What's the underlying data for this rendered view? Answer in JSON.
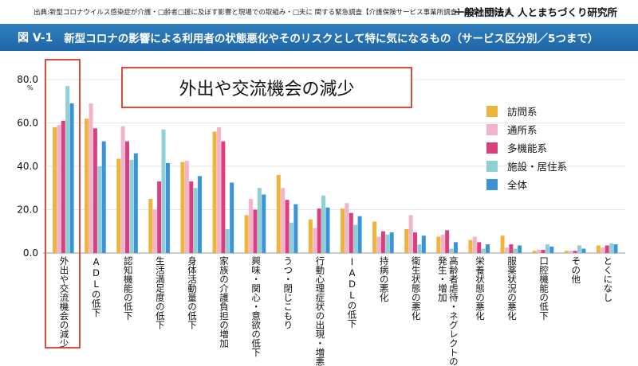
{
  "header": {
    "source": "出典:新型コロナウイルス感染症が介護・□齢者□援に及ぼす影響と現場での取組み・□夫に 関する緊急調査【介護保険サービス事業所調査】調査結果報告書",
    "org": "一般社団法人 人とまちづくり研究所",
    "fig_no": "図 V-1",
    "title": "新型コロナの影響による利用者の状態悪化やそのリスクとして特に気になるもの（サービス区分別／5つまで）"
  },
  "callout": {
    "text": "外出や交流機会の減少"
  },
  "chart_data": {
    "type": "bar",
    "title": "新型コロナの影響による利用者の状態悪化やそのリスクとして特に気になるもの（サービス区分別／5つまで）",
    "ylabel": "%",
    "ylim": [
      0,
      80
    ],
    "yticks": [
      "0.0",
      "20.0",
      "40.0",
      "60.0",
      "80.0"
    ],
    "unit_label": "%",
    "categories": [
      "外出や交流機会の減少",
      "ADLの低下",
      "認知機能の低下",
      "生活満足度の低下",
      "身体活動量の低下",
      "家族の介護負担の増加",
      "興味・関心・意欲の低下",
      "うつ・閉じこもり",
      "行動心理症状の出現・増悪",
      "IADLの低下",
      "持病の悪化",
      "衛生状態の悪化",
      "高齢者虐待・ネグレクトの発生・増加",
      "栄養状態の悪化",
      "服薬状況の悪化",
      "口腔機能の低下",
      "その他",
      "とくになし"
    ],
    "series": [
      {
        "name": "訪問系",
        "color": "#f0b43a",
        "values": [
          58,
          62,
          43.5,
          25,
          42,
          56,
          17.5,
          36,
          15.5,
          20.5,
          14.5,
          11,
          7.5,
          6,
          8,
          1,
          1,
          3.5
        ]
      },
      {
        "name": "通所系",
        "color": "#f2b3cf",
        "values": [
          59,
          69,
          58.5,
          20,
          42.5,
          58,
          25,
          30,
          11.5,
          23,
          7.5,
          17.5,
          8.5,
          7.5,
          2.5,
          1.5,
          1,
          2.5
        ]
      },
      {
        "name": "多機能系",
        "color": "#d8407e",
        "values": [
          61,
          57.5,
          51.5,
          33,
          33,
          51.5,
          20,
          24.5,
          20.5,
          18.5,
          10,
          9.5,
          10.5,
          5,
          4,
          1.5,
          1,
          3.5
        ]
      },
      {
        "name": "施設・居住系",
        "color": "#8fcfd6",
        "values": [
          77,
          40,
          43,
          57,
          30,
          11,
          30,
          14,
          26.5,
          13,
          8.5,
          4,
          2,
          2,
          2,
          4,
          3.5,
          4.5
        ]
      },
      {
        "name": "全体",
        "color": "#3a94d8",
        "values": [
          69,
          51.5,
          46,
          41.5,
          35.5,
          32.5,
          27,
          22.5,
          21,
          17,
          9.5,
          8,
          5,
          4,
          3.5,
          3,
          2,
          4
        ]
      }
    ]
  }
}
